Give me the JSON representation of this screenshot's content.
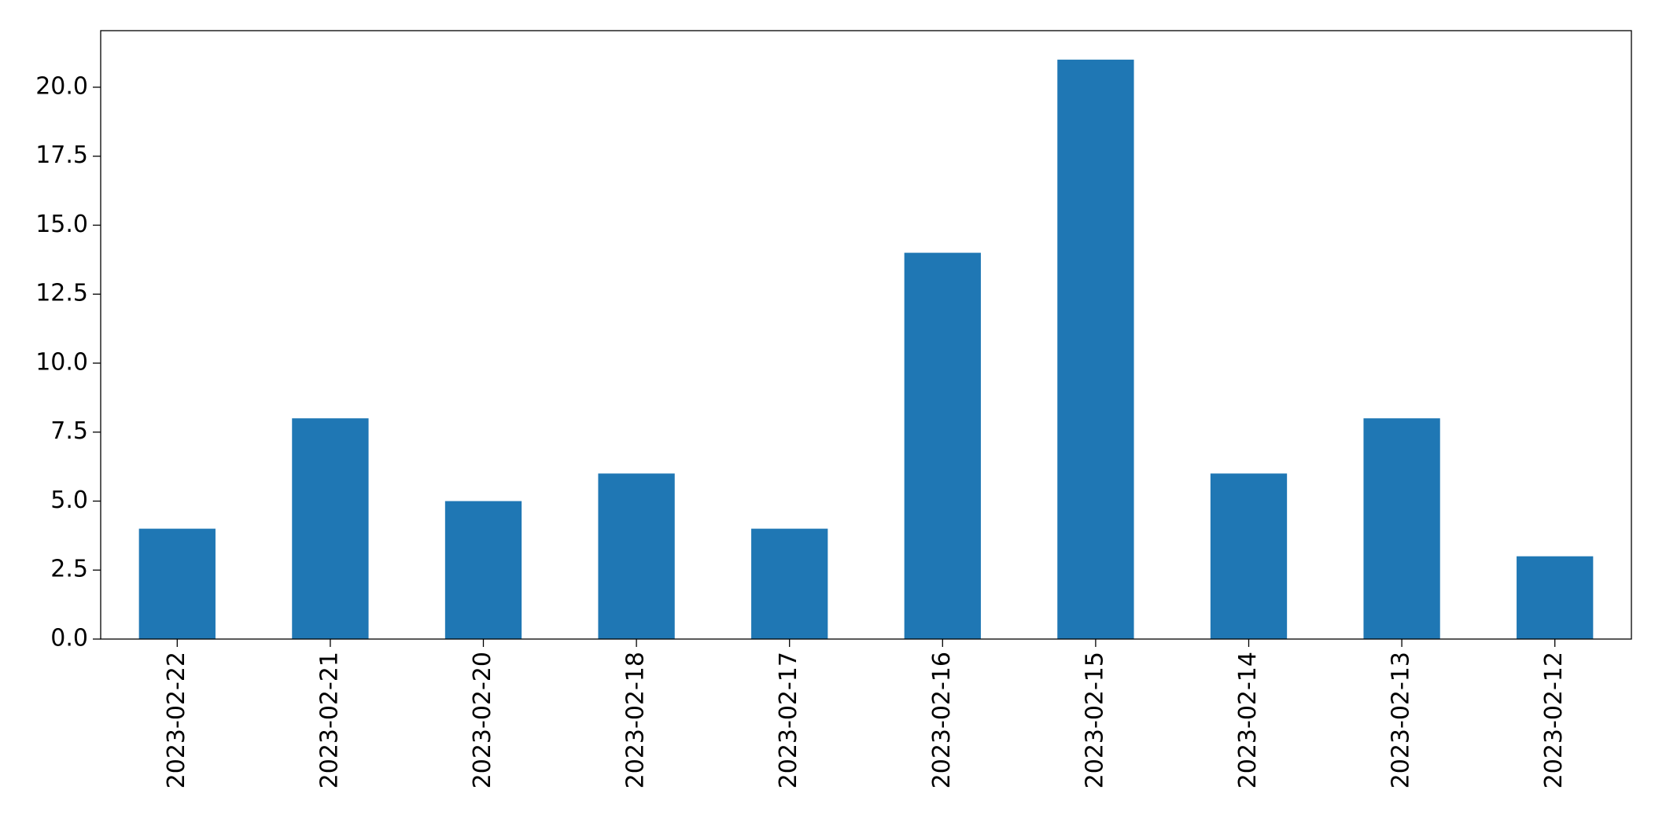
{
  "chart_data": {
    "type": "bar",
    "categories": [
      "2023-02-22",
      "2023-02-21",
      "2023-02-20",
      "2023-02-18",
      "2023-02-17",
      "2023-02-16",
      "2023-02-15",
      "2023-02-14",
      "2023-02-13",
      "2023-02-12"
    ],
    "values": [
      4,
      8,
      5,
      6,
      4,
      14,
      21,
      6,
      8,
      3
    ],
    "color": "#1f77b4",
    "ylim": [
      0,
      22.05
    ],
    "yticks": [
      {
        "value": 0,
        "label": "0.0"
      },
      {
        "value": 2.5,
        "label": "2.5"
      },
      {
        "value": 5,
        "label": "5.0"
      },
      {
        "value": 7.5,
        "label": "7.5"
      },
      {
        "value": 10,
        "label": "10.0"
      },
      {
        "value": 12.5,
        "label": "12.5"
      },
      {
        "value": 15,
        "label": "15.0"
      },
      {
        "value": 17.5,
        "label": "17.5"
      },
      {
        "value": 20,
        "label": "20.0"
      }
    ],
    "grid": false
  }
}
